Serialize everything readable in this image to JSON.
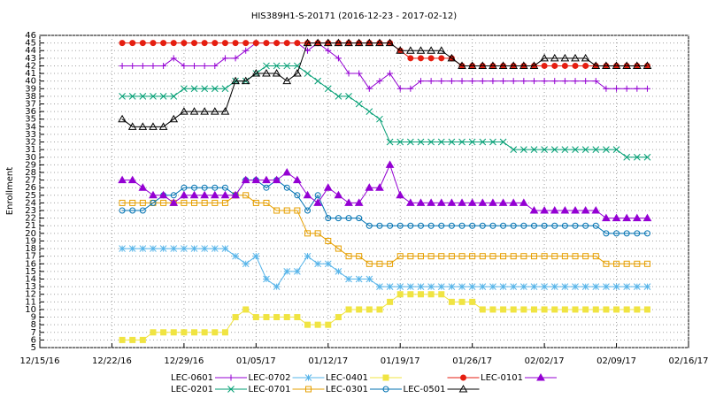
{
  "chart_data": {
    "type": "line",
    "title": "HIS389H1-S-20171 (2016-12-23 - 2017-02-12)",
    "y_label": "Enrollment",
    "grid": true,
    "x": [
      "2016-12-23",
      "2016-12-24",
      "2016-12-25",
      "2016-12-26",
      "2016-12-27",
      "2016-12-28",
      "2016-12-29",
      "2016-12-30",
      "2016-12-31",
      "2017-01-01",
      "2017-01-02",
      "2017-01-03",
      "2017-01-04",
      "2017-01-05",
      "2017-01-06",
      "2017-01-07",
      "2017-01-08",
      "2017-01-09",
      "2017-01-10",
      "2017-01-11",
      "2017-01-12",
      "2017-01-13",
      "2017-01-14",
      "2017-01-15",
      "2017-01-16",
      "2017-01-17",
      "2017-01-18",
      "2017-01-19",
      "2017-01-20",
      "2017-01-21",
      "2017-01-22",
      "2017-01-23",
      "2017-01-24",
      "2017-01-25",
      "2017-01-26",
      "2017-01-27",
      "2017-01-28",
      "2017-01-29",
      "2017-01-30",
      "2017-01-31",
      "2017-02-01",
      "2017-02-02",
      "2017-02-03",
      "2017-02-04",
      "2017-02-05",
      "2017-02-06",
      "2017-02-07",
      "2017-02-08",
      "2017-02-09",
      "2017-02-10",
      "2017-02-11",
      "2017-02-12"
    ],
    "xlim": [
      "2016-12-15",
      "2017-02-16"
    ],
    "xticks": [
      {
        "value": "2016-12-15",
        "label": "12/15/16"
      },
      {
        "value": "2016-12-22",
        "label": "12/22/16"
      },
      {
        "value": "2016-12-29",
        "label": "12/29/16"
      },
      {
        "value": "2017-01-05",
        "label": "01/05/17"
      },
      {
        "value": "2017-01-12",
        "label": "01/12/17"
      },
      {
        "value": "2017-01-19",
        "label": "01/19/17"
      },
      {
        "value": "2017-01-26",
        "label": "01/26/17"
      },
      {
        "value": "2017-02-02",
        "label": "02/02/17"
      },
      {
        "value": "2017-02-09",
        "label": "02/09/17"
      },
      {
        "value": "2017-02-16",
        "label": "02/16/17"
      }
    ],
    "ylim": [
      5,
      46
    ],
    "yticks": [
      5,
      6,
      7,
      8,
      9,
      10,
      11,
      12,
      13,
      14,
      15,
      16,
      17,
      18,
      19,
      20,
      21,
      22,
      23,
      24,
      25,
      26,
      27,
      28,
      29,
      30,
      31,
      32,
      33,
      34,
      35,
      36,
      37,
      38,
      39,
      40,
      41,
      42,
      43,
      44,
      45,
      46
    ],
    "series": [
      {
        "name": "LEC-0601",
        "color": "#9400d3",
        "marker": "plus",
        "values": [
          42,
          42,
          42,
          42,
          42,
          43,
          42,
          42,
          42,
          42,
          43,
          43,
          44,
          45,
          45,
          45,
          45,
          45,
          44,
          45,
          44,
          43,
          41,
          41,
          39,
          40,
          41,
          39,
          39,
          40,
          40,
          40,
          40,
          40,
          40,
          40,
          40,
          40,
          40,
          40,
          40,
          40,
          40,
          40,
          40,
          40,
          40,
          39,
          39,
          39,
          39,
          39
        ]
      },
      {
        "name": "LEC-0201",
        "color": "#009e73",
        "marker": "cross",
        "values": [
          38,
          38,
          38,
          38,
          38,
          38,
          39,
          39,
          39,
          39,
          39,
          40,
          40,
          41,
          42,
          42,
          42,
          42,
          41,
          40,
          39,
          38,
          38,
          37,
          36,
          35,
          32,
          32,
          32,
          32,
          32,
          32,
          32,
          32,
          32,
          32,
          32,
          32,
          31,
          31,
          31,
          31,
          31,
          31,
          31,
          31,
          31,
          31,
          31,
          30,
          30,
          30
        ]
      },
      {
        "name": "LEC-0702",
        "color": "#56b4e9",
        "marker": "star",
        "values": [
          18,
          18,
          18,
          18,
          18,
          18,
          18,
          18,
          18,
          18,
          18,
          17,
          16,
          17,
          14,
          13,
          15,
          15,
          17,
          16,
          16,
          15,
          14,
          14,
          14,
          13,
          13,
          13,
          13,
          13,
          13,
          13,
          13,
          13,
          13,
          13,
          13,
          13,
          13,
          13,
          13,
          13,
          13,
          13,
          13,
          13,
          13,
          13,
          13,
          13,
          13,
          13
        ]
      },
      {
        "name": "LEC-0701",
        "color": "#e69f00",
        "marker": "square-open",
        "values": [
          24,
          24,
          24,
          24,
          24,
          24,
          24,
          24,
          24,
          24,
          24,
          25,
          25,
          24,
          24,
          23,
          23,
          23,
          20,
          20,
          19,
          18,
          17,
          17,
          16,
          16,
          16,
          17,
          17,
          17,
          17,
          17,
          17,
          17,
          17,
          17,
          17,
          17,
          17,
          17,
          17,
          17,
          17,
          17,
          17,
          17,
          17,
          16,
          16,
          16,
          16,
          16
        ]
      },
      {
        "name": "LEC-0401",
        "color": "#f0e442",
        "marker": "square",
        "values": [
          6,
          6,
          6,
          7,
          7,
          7,
          7,
          7,
          7,
          7,
          7,
          9,
          10,
          9,
          9,
          9,
          9,
          9,
          8,
          8,
          8,
          9,
          10,
          10,
          10,
          10,
          11,
          12,
          12,
          12,
          12,
          12,
          11,
          11,
          11,
          10,
          10,
          10,
          10,
          10,
          10,
          10,
          10,
          10,
          10,
          10,
          10,
          10,
          10,
          10,
          10,
          10
        ]
      },
      {
        "name": "LEC-0301",
        "color": "#0072b2",
        "marker": "circle-open",
        "values": [
          23,
          23,
          23,
          24,
          25,
          25,
          26,
          26,
          26,
          26,
          26,
          25,
          27,
          27,
          26,
          27,
          26,
          25,
          23,
          25,
          22,
          22,
          22,
          22,
          21,
          21,
          21,
          21,
          21,
          21,
          21,
          21,
          21,
          21,
          21,
          21,
          21,
          21,
          21,
          21,
          21,
          21,
          21,
          21,
          21,
          21,
          21,
          20,
          20,
          20,
          20,
          20
        ]
      },
      {
        "color": "#e51e10",
        "marker": "circle",
        "values": [
          45,
          45,
          45,
          45,
          45,
          45,
          45,
          45,
          45,
          45,
          45,
          45,
          45,
          45,
          45,
          45,
          45,
          45,
          45,
          45,
          45,
          45,
          45,
          45,
          45,
          45,
          45,
          44,
          43,
          43,
          43,
          43,
          43,
          42,
          42,
          42,
          42,
          42,
          42,
          42,
          42,
          42,
          42,
          42,
          42,
          42,
          42,
          42,
          42,
          42,
          42,
          42
        ]
      },
      {
        "name": "LEC-0501",
        "color": "#000000",
        "marker": "triangle-open",
        "values": [
          35,
          34,
          34,
          34,
          34,
          35,
          36,
          36,
          36,
          36,
          36,
          40,
          40,
          41,
          41,
          41,
          40,
          41,
          45,
          45,
          45,
          45,
          45,
          45,
          45,
          45,
          45,
          44,
          44,
          44,
          44,
          44,
          43,
          42,
          42,
          42,
          42,
          42,
          42,
          42,
          42,
          43,
          43,
          43,
          43,
          43,
          42,
          42,
          42,
          42,
          42,
          42
        ]
      },
      {
        "name": "LEC-0101",
        "color": "#9400d3",
        "marker": "triangle",
        "values": [
          27,
          27,
          26,
          25,
          25,
          24,
          25,
          25,
          25,
          25,
          25,
          25,
          27,
          27,
          27,
          27,
          28,
          27,
          25,
          24,
          26,
          25,
          24,
          24,
          26,
          26,
          29,
          25,
          24,
          24,
          24,
          24,
          24,
          24,
          24,
          24,
          24,
          24,
          24,
          24,
          23,
          23,
          23,
          23,
          23,
          23,
          23,
          22,
          22,
          22,
          22,
          22
        ]
      }
    ]
  }
}
